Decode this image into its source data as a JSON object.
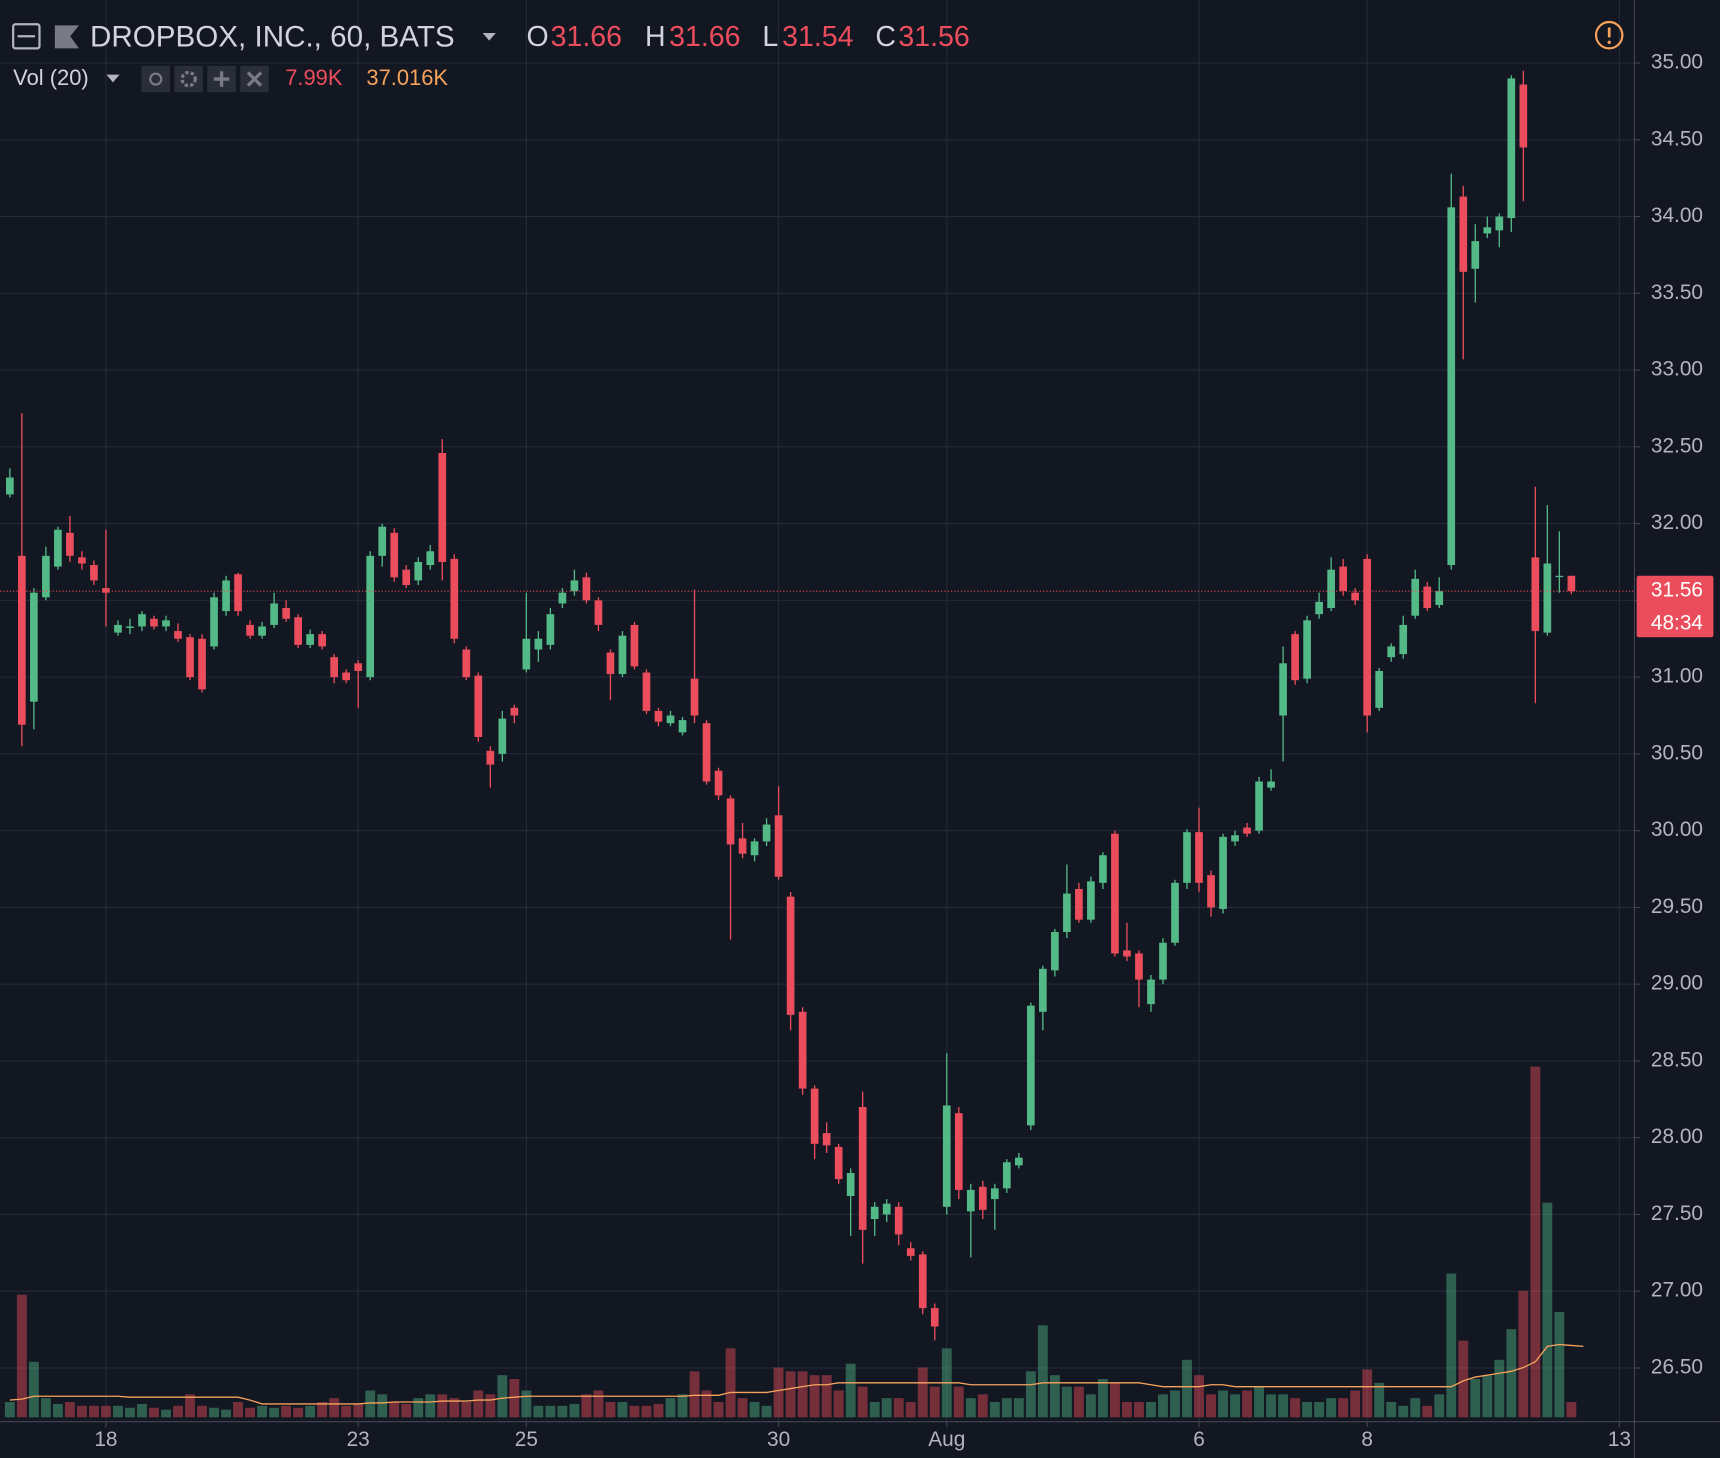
{
  "chart_data": {
    "type": "candlestick",
    "title": "DROPBOX, INC., 60, BATS",
    "ohlc_letters": [
      "O",
      "H",
      "L",
      "C"
    ],
    "indicator": "Vol (20)",
    "legend_values": [
      {
        "value": 7.99,
        "label": "7.99K"
      },
      {
        "value": 37.016,
        "label": "37.016K"
      }
    ],
    "countdown": "48:34",
    "up_color": "#53b987",
    "down_color": "#eb4d5c",
    "ma_color": "#f7a35c",
    "grid": true,
    "open": [
      32.19,
      31.79,
      30.84,
      31.52,
      31.72,
      31.94,
      31.78,
      31.73,
      31.58,
      31.29,
      31.32,
      31.33,
      31.38,
      31.33,
      31.3,
      31.26,
      31.25,
      31.2,
      31.43,
      31.67,
      31.34,
      31.27,
      31.34,
      31.45,
      31.39,
      31.21,
      31.28,
      31.13,
      31.03,
      31.09,
      31.0,
      31.79,
      31.94,
      31.7,
      31.63,
      31.73,
      32.46,
      31.77,
      31.18,
      31.01,
      30.52,
      30.5,
      30.8,
      31.05,
      31.18,
      31.21,
      31.48,
      31.56,
      31.65,
      31.5,
      31.16,
      31.02,
      31.34,
      31.03,
      30.78,
      30.7,
      30.64,
      30.99,
      30.7,
      30.39,
      30.21,
      29.95,
      29.84,
      29.93,
      30.1,
      29.57,
      28.82,
      28.32,
      28.03,
      27.94,
      27.62,
      28.2,
      27.47,
      27.5,
      27.55,
      27.28,
      27.24,
      26.89,
      27.55,
      28.16,
      27.52,
      27.68,
      27.6,
      27.67,
      27.82,
      28.08,
      28.82,
      29.09,
      29.34,
      29.62,
      29.42,
      29.66,
      29.98,
      29.22,
      29.2,
      28.87,
      29.03,
      29.27,
      29.66,
      29.99,
      29.71,
      29.49,
      29.93,
      30.02,
      30.0,
      30.28,
      30.75,
      31.28,
      30.99,
      31.41,
      31.45,
      31.72,
      31.55,
      31.77,
      30.8,
      31.13,
      31.15,
      31.4,
      31.59,
      31.47,
      31.73,
      34.13,
      33.66,
      33.89,
      33.91,
      33.99,
      34.86,
      31.78,
      31.29,
      31.66,
      31.66
    ],
    "high": [
      32.36,
      32.72,
      31.58,
      31.85,
      31.98,
      32.05,
      31.82,
      31.76,
      31.96,
      31.37,
      31.38,
      31.43,
      31.4,
      31.4,
      31.35,
      31.28,
      31.28,
      31.55,
      31.66,
      31.68,
      31.37,
      31.36,
      31.55,
      31.5,
      31.41,
      31.31,
      31.3,
      31.15,
      31.05,
      31.11,
      31.82,
      32.0,
      31.97,
      31.73,
      31.78,
      31.86,
      32.55,
      31.8,
      31.2,
      31.03,
      30.55,
      30.78,
      30.82,
      31.55,
      31.3,
      31.45,
      31.58,
      31.7,
      31.68,
      31.52,
      31.18,
      31.3,
      31.36,
      31.05,
      30.8,
      30.78,
      30.74,
      31.57,
      30.72,
      30.41,
      30.23,
      30.05,
      29.95,
      30.08,
      30.29,
      29.6,
      28.85,
      28.34,
      28.1,
      27.96,
      27.8,
      28.3,
      27.58,
      27.6,
      27.58,
      27.32,
      27.26,
      26.92,
      28.55,
      28.2,
      27.7,
      27.72,
      27.7,
      27.86,
      27.9,
      28.88,
      29.12,
      29.36,
      29.78,
      29.66,
      29.7,
      29.86,
      30.0,
      29.4,
      29.22,
      29.06,
      29.3,
      29.68,
      30.01,
      30.15,
      29.74,
      29.98,
      30.0,
      30.05,
      30.35,
      30.4,
      31.2,
      31.3,
      31.4,
      31.55,
      31.78,
      31.77,
      31.58,
      31.8,
      31.06,
      31.22,
      31.4,
      31.7,
      31.62,
      31.65,
      34.28,
      34.2,
      33.95,
      34.0,
      34.02,
      34.92,
      34.95,
      32.24,
      32.12,
      31.95,
      31.66
    ],
    "low": [
      32.17,
      30.55,
      30.66,
      31.5,
      31.7,
      31.75,
      31.7,
      31.6,
      31.33,
      31.27,
      31.28,
      31.3,
      31.31,
      31.3,
      31.23,
      30.98,
      30.9,
      31.18,
      31.4,
      31.4,
      31.25,
      31.25,
      31.32,
      31.36,
      31.19,
      31.19,
      31.18,
      30.96,
      30.96,
      30.8,
      30.98,
      31.72,
      31.62,
      31.58,
      31.6,
      31.7,
      31.63,
      31.22,
      30.98,
      30.58,
      30.28,
      30.45,
      30.7,
      31.03,
      31.1,
      31.18,
      31.45,
      31.53,
      31.48,
      31.3,
      30.85,
      31.0,
      31.05,
      30.76,
      30.68,
      30.68,
      30.62,
      30.7,
      30.3,
      30.2,
      29.29,
      29.82,
      29.8,
      29.9,
      29.68,
      28.7,
      28.28,
      27.86,
      27.9,
      27.7,
      27.36,
      27.18,
      27.36,
      27.45,
      27.3,
      27.2,
      26.85,
      26.68,
      27.5,
      27.6,
      27.22,
      27.47,
      27.4,
      27.64,
      27.8,
      28.05,
      28.7,
      29.05,
      29.3,
      29.4,
      29.4,
      29.62,
      29.18,
      29.15,
      28.85,
      28.82,
      29.0,
      29.25,
      29.62,
      29.6,
      29.44,
      29.46,
      29.9,
      29.96,
      29.98,
      30.26,
      30.45,
      30.95,
      30.96,
      31.38,
      31.43,
      31.53,
      31.47,
      30.64,
      30.78,
      31.1,
      31.12,
      31.38,
      31.43,
      31.45,
      31.7,
      33.07,
      33.44,
      33.86,
      33.8,
      33.9,
      34.1,
      30.83,
      31.27,
      31.55,
      31.54
    ],
    "close": [
      32.3,
      30.69,
      31.55,
      31.79,
      31.96,
      31.79,
      31.74,
      31.63,
      31.55,
      31.34,
      31.33,
      31.41,
      31.33,
      31.37,
      31.25,
      31.0,
      30.92,
      31.52,
      31.63,
      31.43,
      31.27,
      31.33,
      31.48,
      31.38,
      31.21,
      31.28,
      31.2,
      31.0,
      30.98,
      31.04,
      31.79,
      31.98,
      31.65,
      31.6,
      31.75,
      31.82,
      31.75,
      31.25,
      31.0,
      30.61,
      30.43,
      30.73,
      30.75,
      31.25,
      31.25,
      31.41,
      31.55,
      31.63,
      31.5,
      31.34,
      31.02,
      31.27,
      31.07,
      30.78,
      30.71,
      30.75,
      30.72,
      30.75,
      30.32,
      30.23,
      29.91,
      29.85,
      29.93,
      30.04,
      29.7,
      28.8,
      28.32,
      27.96,
      27.95,
      27.73,
      27.77,
      27.4,
      27.55,
      27.57,
      27.37,
      27.23,
      26.89,
      26.77,
      28.21,
      27.66,
      27.66,
      27.53,
      27.67,
      27.84,
      27.87,
      28.86,
      29.1,
      29.34,
      29.59,
      29.42,
      29.67,
      29.84,
      29.2,
      29.18,
      29.03,
      29.03,
      29.27,
      29.66,
      29.99,
      29.66,
      29.5,
      29.96,
      29.97,
      29.98,
      30.32,
      30.32,
      31.09,
      30.98,
      31.37,
      31.49,
      31.7,
      31.56,
      31.5,
      30.75,
      31.04,
      31.2,
      31.34,
      31.64,
      31.45,
      31.56,
      34.06,
      33.64,
      33.84,
      33.93,
      34.0,
      34.9,
      34.45,
      31.3,
      31.74,
      31.66,
      31.56
    ],
    "volume": [
      8,
      64,
      29,
      10,
      7,
      8,
      6,
      6,
      6,
      6,
      5,
      7,
      5,
      4,
      6,
      12,
      6,
      5,
      4,
      8,
      5,
      6,
      5,
      6,
      5,
      6,
      8,
      10,
      6,
      7,
      14,
      12,
      8,
      7,
      10,
      12,
      12,
      10,
      8,
      14,
      12,
      22,
      20,
      14,
      6,
      6,
      6,
      7,
      12,
      14,
      8,
      8,
      6,
      6,
      7,
      10,
      12,
      24,
      14,
      8,
      36,
      10,
      8,
      6,
      26,
      24,
      24,
      22,
      22,
      14,
      28,
      16,
      8,
      10,
      10,
      8,
      26,
      16,
      36,
      16,
      10,
      12,
      8,
      10,
      10,
      24,
      48,
      22,
      16,
      16,
      12,
      20,
      18,
      8,
      8,
      8,
      12,
      14,
      30,
      22,
      12,
      14,
      12,
      14,
      16,
      12,
      12,
      10,
      8,
      8,
      10,
      10,
      14,
      25,
      18,
      8,
      6,
      10,
      6,
      12,
      75,
      40,
      20,
      22,
      30,
      46,
      66,
      183,
      112,
      55,
      7.99
    ],
    "volume_ma": [
      9,
      9.5,
      11,
      11,
      11,
      11,
      11,
      11,
      11,
      11,
      10.5,
      10.5,
      10.5,
      10.5,
      10.5,
      10.5,
      10.5,
      10.5,
      10.5,
      10.5,
      9,
      7,
      7,
      7,
      7,
      7,
      7,
      7,
      7,
      7,
      7.5,
      7.5,
      8,
      8,
      8,
      8,
      8.5,
      8.5,
      8.5,
      9,
      9,
      10,
      10.5,
      11,
      11,
      11,
      11,
      11,
      11,
      11,
      11,
      11,
      11,
      11,
      11,
      11,
      11,
      11.5,
      11.5,
      11.5,
      13,
      13,
      13,
      13,
      14,
      15,
      16,
      17,
      17,
      18,
      18,
      18,
      18,
      18,
      18,
      18,
      18,
      18,
      18,
      18,
      17,
      17,
      17,
      17,
      17,
      17,
      18,
      18,
      18,
      18,
      18,
      18,
      18,
      18,
      18,
      17,
      16,
      16,
      16,
      16,
      17,
      17,
      16,
      16,
      16,
      16,
      16,
      16,
      16,
      16,
      16,
      16,
      16,
      16,
      16,
      16,
      16,
      16,
      16,
      16,
      16,
      19,
      21,
      22,
      23,
      24,
      26,
      29,
      37,
      38,
      37.5,
      37.016
    ],
    "vol_lim": [
      0,
      190
    ],
    "xlim": [
      -0.82,
      135.25
    ],
    "xticks": [
      {
        "value": 8,
        "label": "18"
      },
      {
        "value": 29,
        "label": "23"
      },
      {
        "value": 43,
        "label": "25"
      },
      {
        "value": 64,
        "label": "30"
      },
      {
        "value": 78,
        "label": "Aug"
      },
      {
        "value": 99,
        "label": "6"
      },
      {
        "value": 113,
        "label": "8"
      },
      {
        "value": 134,
        "label": "13"
      }
    ],
    "ylim": [
      26.15,
      35.41
    ],
    "yticks": [
      {
        "value": 26.5,
        "label": "26.50"
      },
      {
        "value": 27,
        "label": "27.00"
      },
      {
        "value": 27.5,
        "label": "27.50"
      },
      {
        "value": 28,
        "label": "28.00"
      },
      {
        "value": 28.5,
        "label": "28.50"
      },
      {
        "value": 29,
        "label": "29.00"
      },
      {
        "value": 29.5,
        "label": "29.50"
      },
      {
        "value": 30,
        "label": "30.00"
      },
      {
        "value": 30.5,
        "label": "30.50"
      },
      {
        "value": 31,
        "label": "31.00"
      },
      {
        "value": 31.5,
        "label": "31.50"
      },
      {
        "value": 32,
        "label": "32.00"
      },
      {
        "value": 32.5,
        "label": "32.50"
      },
      {
        "value": 33,
        "label": "33.00"
      },
      {
        "value": 33.5,
        "label": "33.50"
      },
      {
        "value": 34,
        "label": "34.00"
      },
      {
        "value": 34.5,
        "label": "34.50"
      },
      {
        "value": 35,
        "label": "35.00"
      }
    ]
  }
}
